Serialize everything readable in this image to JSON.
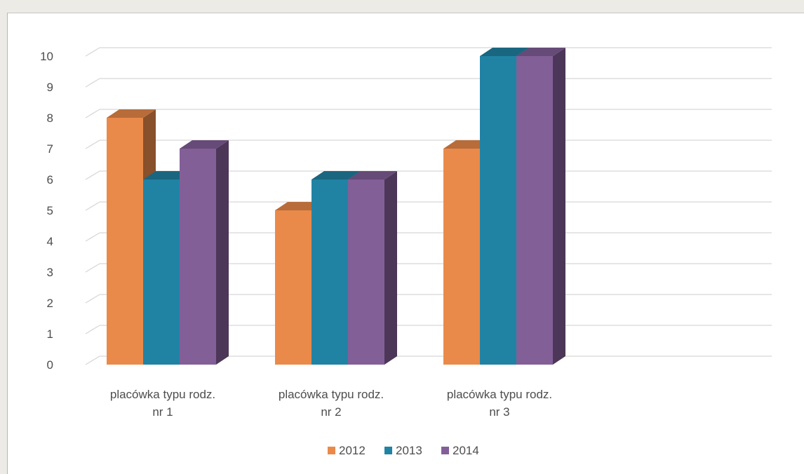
{
  "chart_data": {
    "type": "bar",
    "style": "3d-clustered-column",
    "title": "",
    "xlabel": "",
    "ylabel": "",
    "ylim": [
      0,
      10
    ],
    "yticks": [
      "0",
      "1",
      "2",
      "3",
      "4",
      "5",
      "6",
      "7",
      "8",
      "9",
      "10"
    ],
    "grid": true,
    "legend_position": "bottom",
    "categories": [
      [
        "placówka typu rodz.",
        "nr 1"
      ],
      [
        "placówka typu rodz.",
        "nr 2"
      ],
      [
        "placówka typu rodz.",
        "nr 3"
      ]
    ],
    "series": [
      {
        "name": "2012",
        "color": "#ea8a4a",
        "values": [
          8,
          5,
          7
        ]
      },
      {
        "name": "2013",
        "color": "#2183a4",
        "values": [
          6,
          6,
          10
        ]
      },
      {
        "name": "2014",
        "color": "#835f98",
        "values": [
          7,
          6,
          10
        ]
      }
    ]
  }
}
